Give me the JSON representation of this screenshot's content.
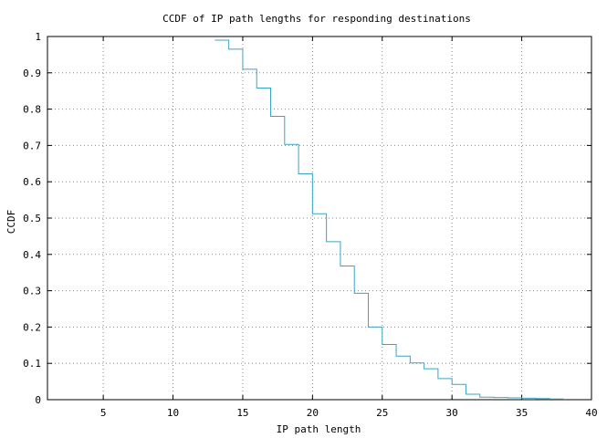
{
  "chart_data": {
    "type": "line",
    "step": true,
    "title": "CCDF of IP path lengths for responding destinations",
    "xlabel": "IP path length",
    "ylabel": "CCDF",
    "xlim": [
      1,
      40
    ],
    "ylim": [
      0,
      1
    ],
    "xticks": [
      5,
      10,
      15,
      20,
      25,
      30,
      35,
      40
    ],
    "yticks": [
      0,
      0.1,
      0.2,
      0.3,
      0.4,
      0.5,
      0.6,
      0.7,
      0.8,
      0.9,
      1
    ],
    "xtick_labels": [
      "5",
      "10",
      "15",
      "20",
      "25",
      "30",
      "35",
      "40"
    ],
    "ytick_labels": [
      "0",
      "0.1",
      "0.2",
      "0.3",
      "0.4",
      "0.5",
      "0.6",
      "0.7",
      "0.8",
      "0.9",
      "1"
    ],
    "grid": true,
    "series": [
      {
        "color": "#3ba3c7",
        "x": [
          13,
          14,
          15,
          16,
          17,
          18,
          19,
          20,
          21,
          22,
          23,
          24,
          25,
          26,
          27,
          28,
          29,
          30,
          31,
          32,
          33,
          34,
          35,
          36,
          37,
          38
        ],
        "y": [
          0.99,
          0.965,
          0.91,
          0.858,
          0.78,
          0.703,
          0.622,
          0.512,
          0.435,
          0.368,
          0.293,
          0.2,
          0.152,
          0.12,
          0.101,
          0.085,
          0.058,
          0.042,
          0.015,
          0.007,
          0.006,
          0.005,
          0.004,
          0.003,
          0.002,
          0.0
        ]
      }
    ]
  }
}
